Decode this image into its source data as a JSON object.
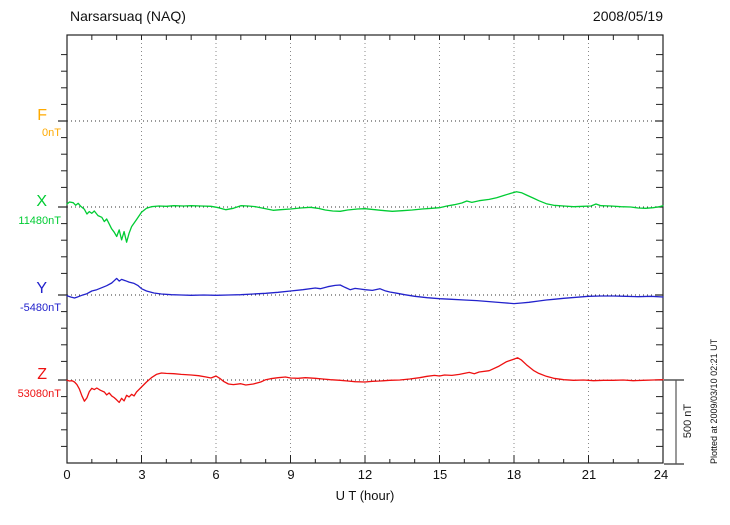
{
  "header": {
    "station": "Narsarsuaq (NAQ)",
    "date": "2008/05/19"
  },
  "axis": {
    "x_ticks": [
      "0",
      "3",
      "6",
      "9",
      "12",
      "15",
      "18",
      "21",
      "24"
    ],
    "x_label": "U T (hour)"
  },
  "right_margin": {
    "scale_label": "500 nT",
    "plotted_note": "Plotted at 2009/03/10 02:21 UT"
  },
  "components": [
    {
      "name": "F",
      "baseline_label": "0nT",
      "color": "#FFAA00"
    },
    {
      "name": "X",
      "baseline_label": "11480nT",
      "color": "#00CC33"
    },
    {
      "name": "Y",
      "baseline_label": "-5480nT",
      "color": "#2222CC"
    },
    {
      "name": "Z",
      "baseline_label": "53080nT",
      "color": "#EE1111"
    }
  ],
  "chart_data": {
    "type": "line",
    "title": "Narsarsuaq (NAQ)",
    "date": "2008/05/19",
    "xlabel": "U T (hour)",
    "x_range": [
      0,
      24
    ],
    "x_tick_step_hours": 3,
    "grid": "dotted vertical lines every 3 hours; dotted horizontal line at each component baseline",
    "legend_position": "left",
    "baseline_spacing_nT": 500,
    "scale_bar_nT": 500,
    "series": [
      {
        "component": "F",
        "baseline_label": "0nT",
        "color": "#FFAA00",
        "units": "nT offset from baseline",
        "points": []
      },
      {
        "component": "X",
        "baseline_label": "11480nT",
        "color": "#00CC33",
        "units": "nT offset from baseline",
        "points": [
          [
            0,
            18
          ],
          [
            0.1,
            30
          ],
          [
            0.25,
            26
          ],
          [
            0.35,
            10
          ],
          [
            0.45,
            22
          ],
          [
            0.55,
            4
          ],
          [
            0.7,
            -14
          ],
          [
            0.8,
            -42
          ],
          [
            0.9,
            -28
          ],
          [
            1,
            -38
          ],
          [
            1.1,
            -24
          ],
          [
            1.25,
            -52
          ],
          [
            1.4,
            -62
          ],
          [
            1.5,
            -88
          ],
          [
            1.6,
            -72
          ],
          [
            1.7,
            -102
          ],
          [
            1.8,
            -132
          ],
          [
            1.9,
            -152
          ],
          [
            2,
            -178
          ],
          [
            2.1,
            -138
          ],
          [
            2.2,
            -198
          ],
          [
            2.3,
            -148
          ],
          [
            2.4,
            -212
          ],
          [
            2.5,
            -158
          ],
          [
            2.6,
            -118
          ],
          [
            2.8,
            -76
          ],
          [
            3,
            -32
          ],
          [
            3.2,
            -8
          ],
          [
            3.4,
            2
          ],
          [
            3.7,
            6
          ],
          [
            4,
            4
          ],
          [
            4.3,
            8
          ],
          [
            4.7,
            6
          ],
          [
            5,
            8
          ],
          [
            5.4,
            6
          ],
          [
            5.8,
            4
          ],
          [
            6.1,
            -4
          ],
          [
            6.4,
            -16
          ],
          [
            6.7,
            -8
          ],
          [
            7,
            8
          ],
          [
            7.3,
            6
          ],
          [
            7.6,
            2
          ],
          [
            8,
            -10
          ],
          [
            8.3,
            -20
          ],
          [
            8.6,
            -16
          ],
          [
            9,
            -12
          ],
          [
            9.4,
            -6
          ],
          [
            9.8,
            -2
          ],
          [
            10.1,
            -8
          ],
          [
            10.4,
            -18
          ],
          [
            10.7,
            -24
          ],
          [
            11,
            -26
          ],
          [
            11.3,
            -18
          ],
          [
            11.7,
            -12
          ],
          [
            12,
            -10
          ],
          [
            12.4,
            -16
          ],
          [
            12.8,
            -22
          ],
          [
            13.1,
            -26
          ],
          [
            13.5,
            -22
          ],
          [
            13.9,
            -18
          ],
          [
            14.3,
            -12
          ],
          [
            14.7,
            -8
          ],
          [
            15,
            -4
          ],
          [
            15.3,
            6
          ],
          [
            15.6,
            14
          ],
          [
            15.9,
            24
          ],
          [
            16.1,
            36
          ],
          [
            16.3,
            28
          ],
          [
            16.6,
            38
          ],
          [
            17,
            46
          ],
          [
            17.3,
            56
          ],
          [
            17.6,
            70
          ],
          [
            17.9,
            84
          ],
          [
            18.1,
            92
          ],
          [
            18.3,
            86
          ],
          [
            18.5,
            72
          ],
          [
            18.8,
            52
          ],
          [
            19,
            38
          ],
          [
            19.3,
            20
          ],
          [
            19.6,
            10
          ],
          [
            20,
            6
          ],
          [
            20.4,
            2
          ],
          [
            20.8,
            4
          ],
          [
            21.1,
            6
          ],
          [
            21.3,
            18
          ],
          [
            21.5,
            8
          ],
          [
            21.9,
            6
          ],
          [
            22.3,
            2
          ],
          [
            22.7,
            0
          ],
          [
            23,
            -6
          ],
          [
            23.3,
            -8
          ],
          [
            23.6,
            -4
          ],
          [
            23.8,
            0
          ],
          [
            24,
            8
          ]
        ]
      },
      {
        "component": "Y",
        "baseline_label": "-5480nT",
        "color": "#2222CC",
        "units": "nT offset from baseline",
        "points": [
          [
            0,
            -4
          ],
          [
            0.15,
            -12
          ],
          [
            0.3,
            -18
          ],
          [
            0.45,
            -10
          ],
          [
            0.6,
            -2
          ],
          [
            0.8,
            8
          ],
          [
            1,
            24
          ],
          [
            1.2,
            32
          ],
          [
            1.4,
            44
          ],
          [
            1.6,
            56
          ],
          [
            1.8,
            72
          ],
          [
            1.9,
            86
          ],
          [
            2,
            100
          ],
          [
            2.1,
            84
          ],
          [
            2.2,
            94
          ],
          [
            2.35,
            86
          ],
          [
            2.5,
            78
          ],
          [
            2.7,
            70
          ],
          [
            2.85,
            58
          ],
          [
            3,
            38
          ],
          [
            3.2,
            24
          ],
          [
            3.5,
            12
          ],
          [
            3.8,
            6
          ],
          [
            4.2,
            2
          ],
          [
            4.6,
            0
          ],
          [
            5,
            -2
          ],
          [
            5.5,
            0
          ],
          [
            6,
            -2
          ],
          [
            6.5,
            0
          ],
          [
            7,
            2
          ],
          [
            7.5,
            6
          ],
          [
            8,
            10
          ],
          [
            8.5,
            16
          ],
          [
            9,
            24
          ],
          [
            9.5,
            32
          ],
          [
            10,
            42
          ],
          [
            10.2,
            38
          ],
          [
            10.5,
            50
          ],
          [
            10.8,
            58
          ],
          [
            11,
            60
          ],
          [
            11.2,
            46
          ],
          [
            11.4,
            32
          ],
          [
            11.6,
            40
          ],
          [
            11.8,
            36
          ],
          [
            12,
            32
          ],
          [
            12.3,
            28
          ],
          [
            12.6,
            38
          ],
          [
            12.8,
            26
          ],
          [
            13,
            18
          ],
          [
            13.3,
            10
          ],
          [
            13.6,
            2
          ],
          [
            14,
            -8
          ],
          [
            14.5,
            -16
          ],
          [
            15,
            -22
          ],
          [
            15.5,
            -26
          ],
          [
            16,
            -30
          ],
          [
            16.5,
            -34
          ],
          [
            17,
            -40
          ],
          [
            17.5,
            -46
          ],
          [
            18,
            -52
          ],
          [
            18.3,
            -48
          ],
          [
            18.6,
            -44
          ],
          [
            19,
            -36
          ],
          [
            19.3,
            -30
          ],
          [
            19.6,
            -26
          ],
          [
            20,
            -20
          ],
          [
            20.5,
            -14
          ],
          [
            21,
            -8
          ],
          [
            21.5,
            -6
          ],
          [
            22,
            -6
          ],
          [
            22.5,
            -8
          ],
          [
            23,
            -10
          ],
          [
            23.5,
            -8
          ],
          [
            24,
            -12
          ]
        ]
      },
      {
        "component": "Z",
        "baseline_label": "53080nT",
        "color": "#EE1111",
        "units": "nT offset from baseline",
        "points": [
          [
            0,
            -2
          ],
          [
            0.1,
            -6
          ],
          [
            0.2,
            -4
          ],
          [
            0.3,
            -12
          ],
          [
            0.4,
            -28
          ],
          [
            0.5,
            -55
          ],
          [
            0.6,
            -95
          ],
          [
            0.7,
            -128
          ],
          [
            0.8,
            -108
          ],
          [
            0.9,
            -70
          ],
          [
            1,
            -50
          ],
          [
            1.1,
            -58
          ],
          [
            1.2,
            -48
          ],
          [
            1.35,
            -62
          ],
          [
            1.5,
            -72
          ],
          [
            1.6,
            -90
          ],
          [
            1.7,
            -78
          ],
          [
            1.8,
            -96
          ],
          [
            1.9,
            -106
          ],
          [
            2,
            -120
          ],
          [
            2.1,
            -135
          ],
          [
            2.2,
            -110
          ],
          [
            2.3,
            -126
          ],
          [
            2.4,
            -92
          ],
          [
            2.5,
            -102
          ],
          [
            2.6,
            -86
          ],
          [
            2.7,
            -96
          ],
          [
            2.8,
            -72
          ],
          [
            3,
            -42
          ],
          [
            3.2,
            -12
          ],
          [
            3.4,
            14
          ],
          [
            3.6,
            34
          ],
          [
            3.8,
            42
          ],
          [
            4,
            40
          ],
          [
            4.3,
            38
          ],
          [
            4.6,
            34
          ],
          [
            5,
            30
          ],
          [
            5.3,
            26
          ],
          [
            5.6,
            18
          ],
          [
            5.8,
            12
          ],
          [
            6,
            24
          ],
          [
            6.15,
            10
          ],
          [
            6.3,
            -8
          ],
          [
            6.5,
            -24
          ],
          [
            6.7,
            -28
          ],
          [
            7,
            -22
          ],
          [
            7.2,
            -30
          ],
          [
            7.5,
            -24
          ],
          [
            7.8,
            -12
          ],
          [
            8,
            2
          ],
          [
            8.2,
            8
          ],
          [
            8.5,
            14
          ],
          [
            8.8,
            18
          ],
          [
            9,
            12
          ],
          [
            9.3,
            10
          ],
          [
            9.6,
            14
          ],
          [
            10,
            10
          ],
          [
            10.3,
            6
          ],
          [
            10.6,
            2
          ],
          [
            11,
            -2
          ],
          [
            11.3,
            -6
          ],
          [
            11.6,
            -10
          ],
          [
            12,
            -12
          ],
          [
            12.3,
            -8
          ],
          [
            12.6,
            -6
          ],
          [
            13,
            -2
          ],
          [
            13.4,
            0
          ],
          [
            13.8,
            6
          ],
          [
            14.2,
            14
          ],
          [
            14.5,
            22
          ],
          [
            14.8,
            28
          ],
          [
            15,
            24
          ],
          [
            15.2,
            30
          ],
          [
            15.5,
            28
          ],
          [
            15.8,
            34
          ],
          [
            16,
            40
          ],
          [
            16.2,
            46
          ],
          [
            16.4,
            38
          ],
          [
            16.6,
            48
          ],
          [
            17,
            56
          ],
          [
            17.4,
            84
          ],
          [
            17.7,
            110
          ],
          [
            18,
            126
          ],
          [
            18.15,
            134
          ],
          [
            18.3,
            120
          ],
          [
            18.5,
            92
          ],
          [
            18.8,
            56
          ],
          [
            19,
            40
          ],
          [
            19.3,
            22
          ],
          [
            19.6,
            10
          ],
          [
            20,
            2
          ],
          [
            20.4,
            -2
          ],
          [
            20.8,
            0
          ],
          [
            21.2,
            -4
          ],
          [
            21.6,
            -2
          ],
          [
            22,
            -2
          ],
          [
            22.4,
            0
          ],
          [
            22.8,
            -4
          ],
          [
            23.2,
            -2
          ],
          [
            23.6,
            0
          ],
          [
            24,
            2
          ]
        ]
      }
    ]
  }
}
